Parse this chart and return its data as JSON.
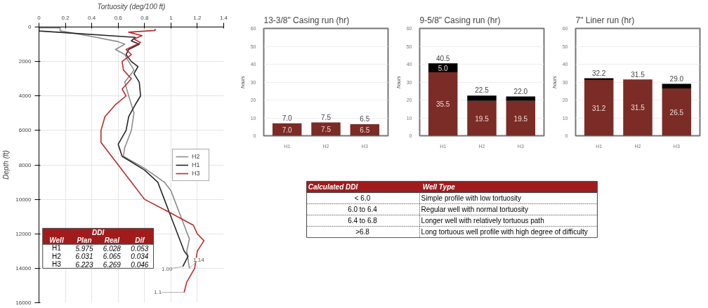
{
  "chart_data": [
    {
      "type": "line",
      "xlabel": "Tortuosity (deg/100 ft)",
      "ylabel": "Depth (ft)",
      "xlim": [
        0,
        1.4
      ],
      "xticks": [
        0,
        0.2,
        0.4,
        0.6,
        0.8,
        1,
        1.2,
        1.4
      ],
      "ylim": [
        16000,
        0
      ],
      "yticks": [
        0,
        2000,
        4000,
        6000,
        8000,
        10000,
        12000,
        14000,
        16000
      ],
      "grid": true,
      "legend": "right",
      "marker": "none",
      "line_style": "solid",
      "series": [
        {
          "name": "H2",
          "color": "#8c8c8c",
          "x": [
            0,
            0.16,
            0.16,
            0.4,
            0.6,
            0.65,
            0.58,
            0.65,
            0.68,
            0.72,
            0.65,
            0.68,
            0.72,
            0.7,
            0.65,
            0.64,
            0.8,
            0.95,
            1.0,
            1.05,
            1.1,
            1.14,
            1.12,
            1.14
          ],
          "values": [
            50,
            50,
            220,
            550,
            850,
            1000,
            1300,
            1600,
            2000,
            2500,
            3200,
            4000,
            5000,
            6000,
            7000,
            7500,
            8200,
            9000,
            9500,
            10500,
            11500,
            12300,
            13000,
            14000
          ]
        },
        {
          "name": "H1",
          "color": "#262626",
          "x": [
            0,
            0,
            0.73,
            0.7,
            0.76,
            0.68,
            0.66,
            0.7,
            0.75,
            0.72,
            0.76,
            0.77,
            0.73,
            0.68,
            0.66,
            0.6,
            0.63,
            0.8,
            0.9,
            0.95,
            1.0,
            1.05,
            1.1,
            1.13,
            1.09
          ],
          "values": [
            0,
            230,
            600,
            800,
            1000,
            1300,
            1600,
            2000,
            2300,
            2700,
            3200,
            4000,
            4500,
            5200,
            6000,
            6800,
            7500,
            8300,
            9000,
            10000,
            11000,
            12000,
            13000,
            13300,
            13900
          ]
        },
        {
          "name": "H3",
          "color": "#c0282a",
          "x": [
            0.88,
            0.88,
            0.68,
            0.78,
            0.72,
            0.77,
            0.66,
            0.7,
            0.63,
            0.64,
            0.7,
            0.63,
            0.66,
            0.58,
            0.5,
            0.47,
            0.47,
            0.53,
            0.6,
            0.7,
            0.8,
            1.0,
            1.17,
            1.2,
            1.25,
            1.2,
            1.18,
            1.12,
            1.1
          ],
          "values": [
            100,
            200,
            300,
            500,
            700,
            900,
            1300,
            1600,
            2000,
            2500,
            3000,
            3600,
            4000,
            4500,
            5200,
            6000,
            6700,
            7300,
            8000,
            9000,
            10000,
            10800,
            11500,
            12000,
            12400,
            13000,
            14000,
            14800,
            15400
          ]
        }
      ],
      "annotations": [
        "DDI",
        "Well",
        "Plan",
        "Real",
        "Dif",
        "H1",
        "5.975",
        "6.028",
        "0.053",
        "H2",
        "6.031",
        "6.065",
        "0.034",
        "H3",
        "6.223",
        "6.269",
        "0.046",
        {
          "text": "1.09",
          "x": 1.09,
          "y": 13900
        },
        {
          "text": "1.14",
          "x": 1.14,
          "y": 14000
        },
        {
          "text": "1.1",
          "x": 1.1,
          "y": 15400
        }
      ]
    },
    {
      "type": "bar",
      "title": "13-3/8\" Casing run (hr)",
      "ylabel": "hours",
      "categories": [
        "H1",
        "H2",
        "H3"
      ],
      "stacked": true,
      "ylim": [
        0,
        60
      ],
      "yticks": [
        0,
        10,
        20,
        30,
        40,
        50,
        60
      ],
      "grid": "y",
      "totals": [
        "7.0",
        "7.5",
        "6.5"
      ],
      "series": [
        {
          "color": "#7b2c26",
          "values": [
            7.0,
            7.5,
            6.5
          ],
          "value_labels": [
            "7.0",
            "7.5",
            "6.5"
          ]
        }
      ]
    },
    {
      "type": "bar",
      "title": "9-5/8\" Casing run (hr)",
      "ylabel": "hours",
      "categories": [
        "H1",
        "H2",
        "H3"
      ],
      "stacked": true,
      "ylim": [
        0,
        60
      ],
      "yticks": [
        0,
        10,
        20,
        30,
        40,
        50,
        60
      ],
      "grid": "y",
      "totals": [
        "40.5",
        "22.5",
        "22.0"
      ],
      "series": [
        {
          "color": "#7b2c26",
          "values": [
            35.5,
            19.5,
            19.5
          ],
          "value_labels": [
            "35.5",
            "19.5",
            "19.5"
          ]
        },
        {
          "color": "#000000",
          "values": [
            5.0,
            3.0,
            2.5
          ],
          "value_labels": [
            "5.0",
            null,
            null
          ]
        }
      ]
    },
    {
      "type": "bar",
      "title": "7\" Liner run (hr)",
      "ylabel": "hours",
      "categories": [
        "H1",
        "H2",
        "H3"
      ],
      "stacked": true,
      "ylim": [
        0,
        60
      ],
      "yticks": [
        0,
        10,
        20,
        30,
        40,
        50,
        60
      ],
      "grid": "y",
      "totals": [
        "32.2",
        "31.5",
        "29.0"
      ],
      "series": [
        {
          "color": "#7b2c26",
          "values": [
            31.2,
            31.5,
            26.5
          ],
          "value_labels": [
            "31.2",
            "31.5",
            "26.5"
          ]
        },
        {
          "color": "#000000",
          "values": [
            1.0,
            0,
            2.5
          ],
          "value_labels": [
            null,
            null,
            null
          ]
        }
      ]
    },
    {
      "type": "other",
      "annotations": [
        "Calculated DDI",
        "Well Type",
        "< 6.0",
        "Simple profile with low tortuosity",
        "6.0 to 6.4",
        "Regular well with normal tortuosity",
        "6.4 to 6.8",
        "Longer well with relatively tortuous path",
        ">6.8",
        "Long tortuous well profile with high degree of difficulty"
      ]
    }
  ]
}
